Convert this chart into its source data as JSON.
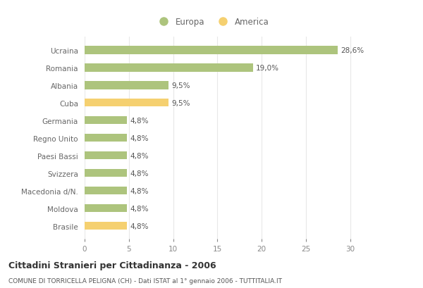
{
  "categories": [
    "Ucraina",
    "Romania",
    "Albania",
    "Cuba",
    "Germania",
    "Regno Unito",
    "Paesi Bassi",
    "Svizzera",
    "Macedonia d/N.",
    "Moldova",
    "Brasile"
  ],
  "values": [
    28.6,
    19.0,
    9.5,
    9.5,
    4.8,
    4.8,
    4.8,
    4.8,
    4.8,
    4.8,
    4.8
  ],
  "labels": [
    "28,6%",
    "19,0%",
    "9,5%",
    "9,5%",
    "4,8%",
    "4,8%",
    "4,8%",
    "4,8%",
    "4,8%",
    "4,8%",
    "4,8%"
  ],
  "colors": [
    "#adc47d",
    "#adc47d",
    "#adc47d",
    "#f5d070",
    "#adc47d",
    "#adc47d",
    "#adc47d",
    "#adc47d",
    "#adc47d",
    "#adc47d",
    "#f5d070"
  ],
  "europa_color": "#adc47d",
  "america_color": "#f5d070",
  "xlim": [
    0,
    32
  ],
  "xticks": [
    0,
    5,
    10,
    15,
    20,
    25,
    30
  ],
  "title": "Cittadini Stranieri per Cittadinanza - 2006",
  "subtitle": "COMUNE DI TORRICELLA PELIGNA (CH) - Dati ISTAT al 1° gennaio 2006 - TUTTITALIA.IT",
  "legend_europa": "Europa",
  "legend_america": "America",
  "background_color": "#ffffff",
  "grid_color": "#e8e8e8",
  "bar_height": 0.45
}
